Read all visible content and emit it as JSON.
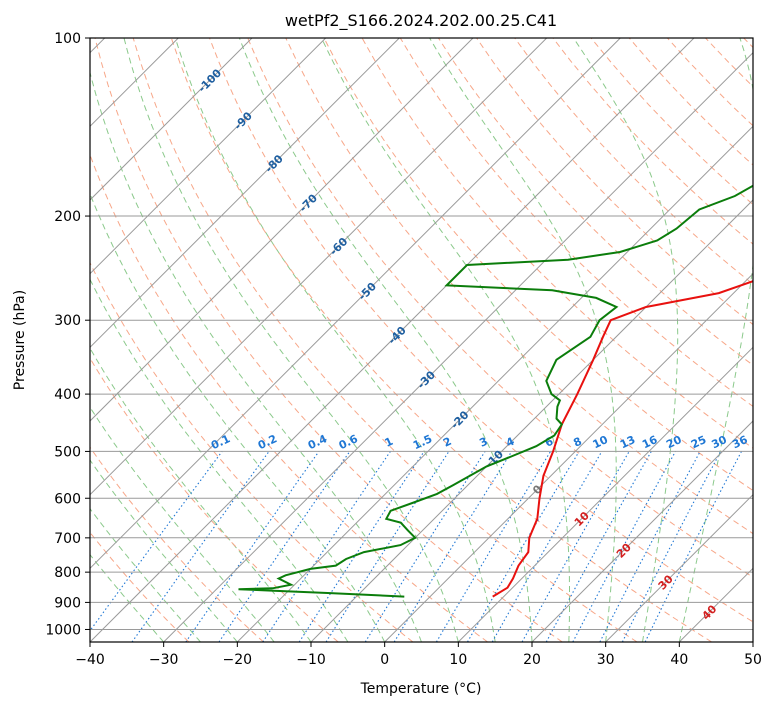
{
  "chart_data": {
    "type": "line",
    "title": "wetPf2_S166.2024.202.00.25.C41",
    "xlabel": "Temperature (°C)",
    "ylabel": "Pressure (hPa)",
    "xlim": [
      -40,
      50
    ],
    "ylim": [
      1050,
      100
    ],
    "y_scale": "log",
    "grid": true,
    "x_ticks": [
      "-40",
      "-30",
      "-20",
      "-10",
      "0",
      "10",
      "20",
      "30",
      "40",
      "50"
    ],
    "y_ticks": [
      "100",
      "200",
      "300",
      "400",
      "500",
      "600",
      "700",
      "800",
      "900",
      "1000"
    ],
    "series": [
      {
        "name": "",
        "color": "#e8110f",
        "points": [
          [
            8.5,
            880
          ],
          [
            9.3,
            850
          ],
          [
            8.8,
            820
          ],
          [
            7.8,
            780
          ],
          [
            7.3,
            740
          ],
          [
            5.5,
            700
          ],
          [
            4.0,
            650
          ],
          [
            1.5,
            600
          ],
          [
            -1.0,
            550
          ],
          [
            -3.0,
            500
          ],
          [
            -5.5,
            450
          ],
          [
            -7.5,
            400
          ],
          [
            -10.0,
            350
          ],
          [
            -11.8,
            320
          ],
          [
            -13.0,
            300
          ],
          [
            -10.0,
            285
          ],
          [
            -2.0,
            270
          ],
          [
            3.0,
            250
          ],
          [
            7.0,
            230
          ],
          [
            11.5,
            210
          ],
          [
            14.5,
            200
          ],
          [
            17.0,
            185
          ],
          [
            20.0,
            165
          ],
          [
            23.0,
            150
          ],
          [
            26.0,
            130
          ],
          [
            30.0,
            115
          ],
          [
            33.5,
            100
          ]
        ]
      },
      {
        "name": "",
        "color": "#0b7d0b",
        "points": [
          [
            -3.5,
            880
          ],
          [
            -14.0,
            868
          ],
          [
            -22.0,
            860
          ],
          [
            -27.0,
            855
          ],
          [
            -22.5,
            852
          ],
          [
            -20.5,
            840
          ],
          [
            -23.0,
            820
          ],
          [
            -22.5,
            810
          ],
          [
            -20.0,
            790
          ],
          [
            -17.0,
            780
          ],
          [
            -16.5,
            760
          ],
          [
            -15.0,
            740
          ],
          [
            -11.0,
            720
          ],
          [
            -10.0,
            700
          ],
          [
            -12.0,
            680
          ],
          [
            -14.0,
            660
          ],
          [
            -16.5,
            650
          ],
          [
            -17.0,
            630
          ],
          [
            -15.0,
            610
          ],
          [
            -13.0,
            590
          ],
          [
            -12.0,
            570
          ],
          [
            -11.0,
            550
          ],
          [
            -10.0,
            530
          ],
          [
            -8.0,
            510
          ],
          [
            -6.0,
            490
          ],
          [
            -5.0,
            470
          ],
          [
            -5.5,
            450
          ],
          [
            -7.0,
            440
          ],
          [
            -8.5,
            420
          ],
          [
            -9.0,
            410
          ],
          [
            -11.0,
            400
          ],
          [
            -13.5,
            380
          ],
          [
            -15.0,
            350
          ],
          [
            -13.5,
            320
          ],
          [
            -14.5,
            300
          ],
          [
            -14.0,
            285
          ],
          [
            -18.0,
            275
          ],
          [
            -25.0,
            267
          ],
          [
            -40.0,
            262
          ],
          [
            -40.0,
            242
          ],
          [
            -27.0,
            237
          ],
          [
            -21.0,
            230
          ],
          [
            -17.5,
            220
          ],
          [
            -16.5,
            210
          ],
          [
            -16.0,
            195
          ],
          [
            -13.0,
            185
          ],
          [
            -11.5,
            175
          ],
          [
            -12.0,
            165
          ],
          [
            -12.5,
            155
          ],
          [
            -12.0,
            145
          ],
          [
            -10.0,
            135
          ],
          [
            -8.5,
            125
          ],
          [
            -7.0,
            115
          ],
          [
            -5.0,
            105
          ],
          [
            -4.0,
            100
          ]
        ]
      }
    ],
    "dry_adiabat_color": "#f7a789",
    "moist_adiabat_color": "#8bc98b",
    "mixing_ratio_color": "#1f77d4",
    "isotherm_label_color": "#1f5fa0",
    "positive_isotherm_label_color": "#d32020",
    "mixing_ratio_labels": [
      "0.1",
      "0.2",
      "0.4",
      "0.6",
      "1",
      "1.5",
      "2",
      "3",
      "4",
      "6",
      "8",
      "10",
      "13",
      "16",
      "20",
      "25",
      "30",
      "36"
    ],
    "mixing_ratio_values": [
      0.1,
      0.2,
      0.4,
      0.6,
      1,
      1.5,
      2,
      3,
      4,
      6,
      8,
      10,
      13,
      16,
      20,
      25,
      30,
      36
    ],
    "isotherm_labels": [
      {
        "value": -100,
        "text": "-100"
      },
      {
        "value": -90,
        "text": "-90"
      },
      {
        "value": -80,
        "text": "-80"
      },
      {
        "value": -70,
        "text": "-70"
      },
      {
        "value": -60,
        "text": "-60"
      },
      {
        "value": -50,
        "text": "-50"
      },
      {
        "value": -40,
        "text": "-40"
      },
      {
        "value": -30,
        "text": "-30"
      },
      {
        "value": -20,
        "text": "-20"
      },
      {
        "value": -10,
        "text": "-10"
      },
      {
        "value": 0,
        "text": "0"
      },
      {
        "value": 10,
        "text": "10"
      },
      {
        "value": 20,
        "text": "20"
      },
      {
        "value": 30,
        "text": "30"
      },
      {
        "value": 40,
        "text": "40"
      }
    ]
  }
}
